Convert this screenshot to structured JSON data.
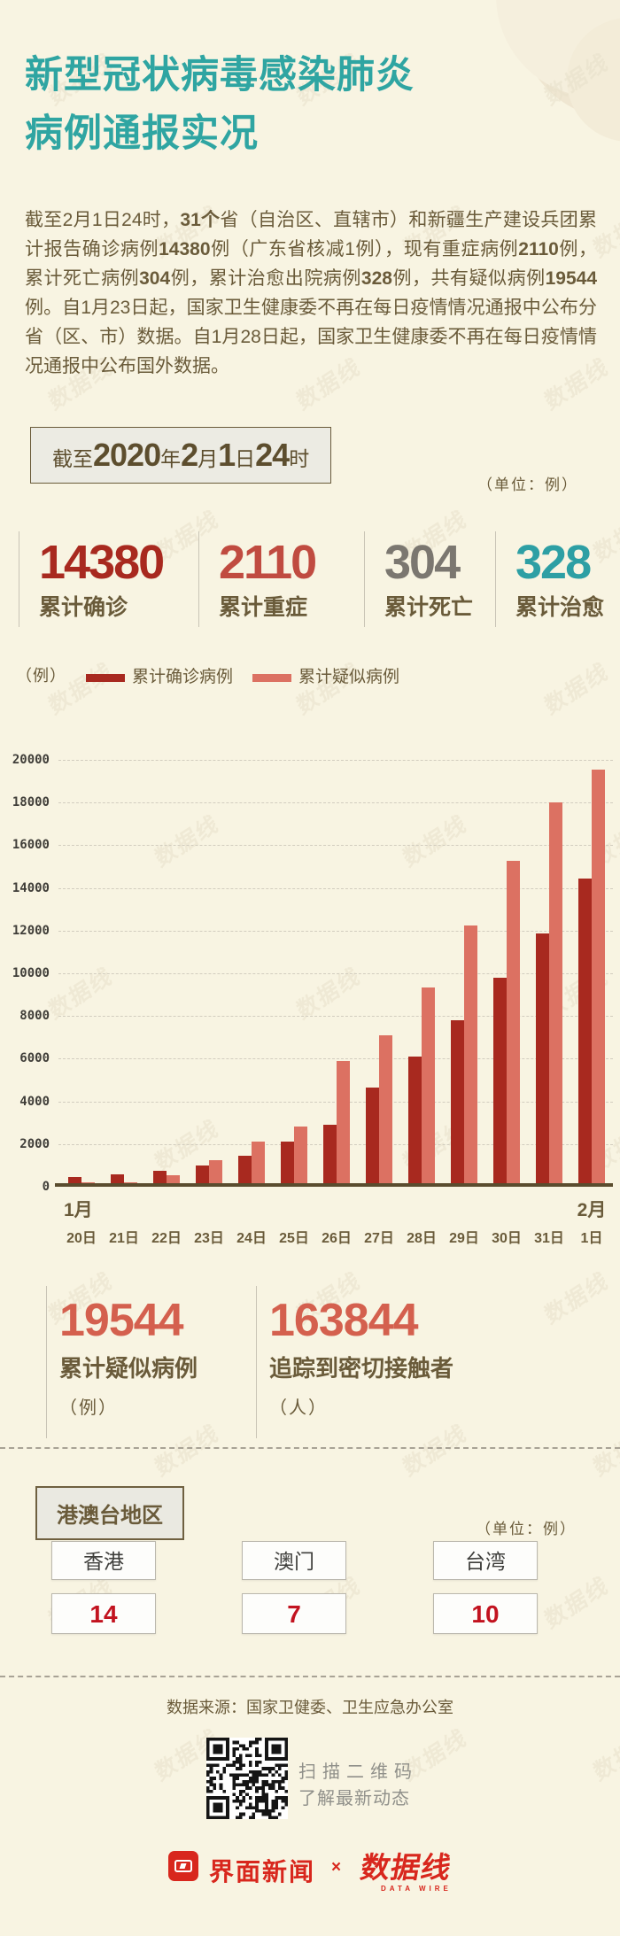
{
  "page": {
    "watermark": "数据线"
  },
  "header": {
    "title_line1": "新型冠状病毒感染肺炎",
    "title_line2": "病例通报实况",
    "title_color": "#2fa5a2"
  },
  "intro": {
    "segments": [
      {
        "t": "截至2月1日24时，",
        "b": false
      },
      {
        "t": "31个",
        "b": true
      },
      {
        "t": "省（自治区、直辖市）和新疆生产建设兵团累计报告确诊病例",
        "b": false
      },
      {
        "t": "14380",
        "b": true
      },
      {
        "t": "例（广东省核减1例），现有重症病例",
        "b": false
      },
      {
        "t": "2110",
        "b": true
      },
      {
        "t": "例，累计死亡病例",
        "b": false
      },
      {
        "t": "304",
        "b": true
      },
      {
        "t": "例，累计治愈出院病例",
        "b": false
      },
      {
        "t": "328",
        "b": true
      },
      {
        "t": "例，共有疑似病例",
        "b": false
      },
      {
        "t": "19544",
        "b": true
      },
      {
        "t": "例。自1月23日起，国家卫生健康委不再在每日疫情情况通报中公布分省（区、市）数据。自1月28日起，国家卫生健康委不再在每日疫情情况通报中公布国外数据。",
        "b": false
      }
    ]
  },
  "snapshot": {
    "banner_segments": [
      {
        "t": "截至",
        "b": false
      },
      {
        "t": "2020",
        "b": true
      },
      {
        "t": "年",
        "b": false
      },
      {
        "t": "2",
        "b": true
      },
      {
        "t": "月",
        "b": false
      },
      {
        "t": "1",
        "b": true
      },
      {
        "t": "日",
        "b": false
      },
      {
        "t": "24",
        "b": true
      },
      {
        "t": "时",
        "b": false
      }
    ],
    "unit_note": "（单位：例）"
  },
  "stats": [
    {
      "value": "14380",
      "label": "累计确诊",
      "color": "#a8291f"
    },
    {
      "value": "2110",
      "label": "累计重症",
      "color": "#c04b40"
    },
    {
      "value": "304",
      "label": "累计死亡",
      "color": "#7b7770"
    },
    {
      "value": "328",
      "label": "累计治愈",
      "color": "#2d9fa4"
    }
  ],
  "legend": {
    "unit_label": "（例）",
    "items": [
      {
        "label": "累计确诊病例",
        "color": "#a8291f"
      },
      {
        "label": "累计疑似病例",
        "color": "#dc7162"
      }
    ]
  },
  "chart_data": {
    "type": "bar",
    "categories": [
      "20日",
      "21日",
      "22日",
      "23日",
      "24日",
      "25日",
      "26日",
      "27日",
      "28日",
      "29日",
      "30日",
      "31日",
      "1日"
    ],
    "month_markers": [
      {
        "index": 0,
        "label": "1月"
      },
      {
        "index": 12,
        "label": "2月"
      }
    ],
    "series": [
      {
        "name": "累计确诊病例",
        "color": "#a8291f",
        "values": [
          291,
          440,
          571,
          830,
          1287,
          1975,
          2744,
          4515,
          5974,
          7711,
          9692,
          11791,
          14380
        ]
      },
      {
        "name": "累计疑似病例",
        "color": "#dc7162",
        "values": [
          54,
          37,
          393,
          1072,
          1965,
          2684,
          5794,
          6973,
          9239,
          12167,
          15238,
          17988,
          19544
        ]
      }
    ],
    "ylim": [
      0,
      20000
    ],
    "ytick_step": 2000,
    "grid": "horizontal-dashed",
    "legend_position": "top"
  },
  "stats2": [
    {
      "value": "19544",
      "label": "累计疑似病例",
      "unit": "（例）"
    },
    {
      "value": "163844",
      "label": "追踪到密切接触者",
      "unit": "（人）"
    }
  ],
  "hmt": {
    "box_label": "港澳台地区",
    "unit_note": "（单位：例）",
    "regions": [
      {
        "name": "香港",
        "value": "14"
      },
      {
        "name": "澳门",
        "value": "7"
      },
      {
        "name": "台湾",
        "value": "10"
      }
    ]
  },
  "footer": {
    "source": "数据来源：国家卫健委、卫生应急办公室",
    "qr_caption_line1": "扫描二维码",
    "qr_caption_line2": "了解最新动态",
    "brand1": "界面新闻",
    "cross": "×",
    "brand2": "数据线",
    "brand2_sub": "DATA WIRE"
  }
}
